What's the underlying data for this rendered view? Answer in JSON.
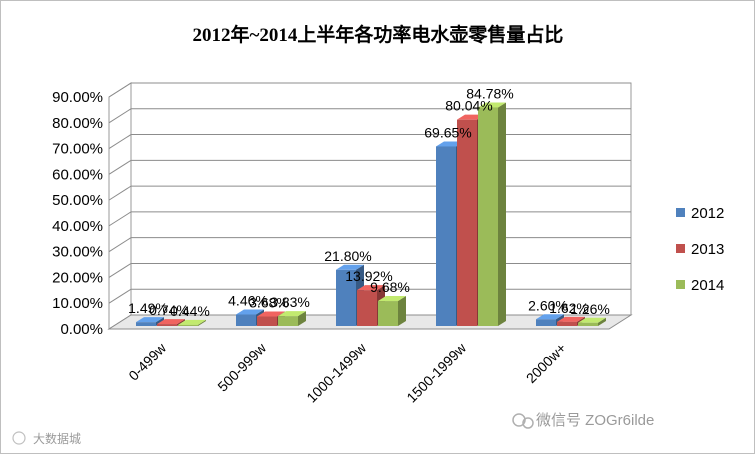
{
  "chart_data": {
    "type": "bar",
    "title": "2012年~2014上半年各功率电水壶零售量占比",
    "categories": [
      "0-499w",
      "500-999w",
      "1000-1499w",
      "1500-1999w",
      "2000w+"
    ],
    "series": [
      {
        "name": "2012",
        "values": [
          1.49,
          4.46,
          21.8,
          69.65,
          2.6
        ]
      },
      {
        "name": "2013",
        "values": [
          0.74,
          3.68,
          13.92,
          80.04,
          1.62
        ]
      },
      {
        "name": "2014",
        "values": [
          0.44,
          3.83,
          9.68,
          84.78,
          1.26
        ]
      }
    ],
    "data_labels": [
      [
        "1.49%",
        "4.46%",
        "21.80%",
        "69.65%",
        "2.60%"
      ],
      [
        "0.74%",
        "3.68%",
        "13.92%",
        "80.04%",
        "1.62%"
      ],
      [
        "0.44%",
        "3.83%",
        "9.68%",
        "84.78%",
        "1.26%"
      ]
    ],
    "y_ticks": [
      "0.00%",
      "10.00%",
      "20.00%",
      "30.00%",
      "40.00%",
      "50.00%",
      "60.00%",
      "70.00%",
      "80.00%",
      "90.00%"
    ],
    "ylim": [
      0,
      90
    ],
    "grid": true,
    "legend_position": "right",
    "colors": {
      "2012": "#4f81bd",
      "2013": "#c0504d",
      "2014": "#9bbb59"
    }
  },
  "watermarks": {
    "right": "微信号 ZOGr6ilde",
    "left": "大数据城"
  }
}
